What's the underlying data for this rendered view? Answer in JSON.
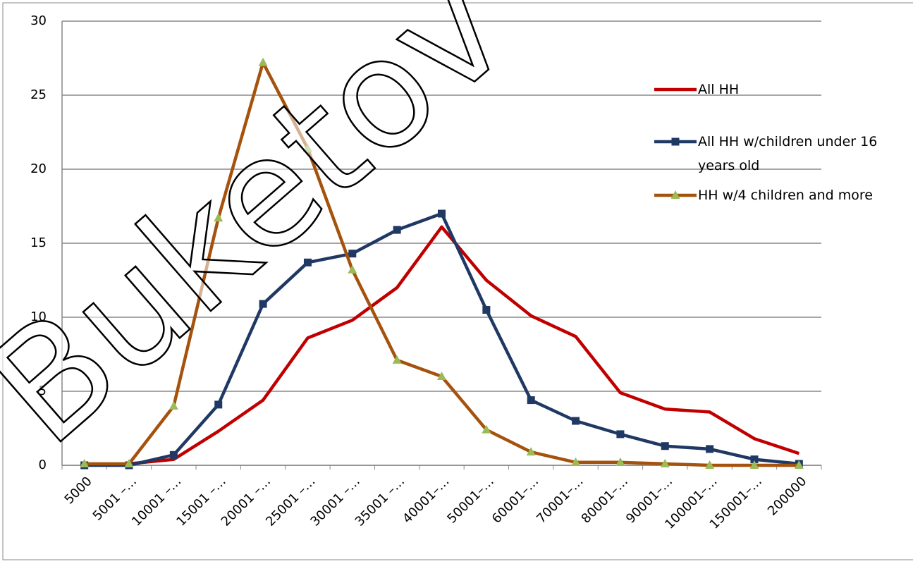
{
  "chart_data": {
    "type": "line",
    "categories": [
      "5000",
      "5001 –…",
      "10001 –…",
      "15001 –…",
      "20001 –…",
      "25001 –…",
      "30001 –…",
      "35001 –…",
      "40001–…",
      "50001–…",
      "60001–…",
      "70001–…",
      "80001–…",
      "90001–…",
      "100001–…",
      "150001–…",
      "200000"
    ],
    "series": [
      {
        "name": "All HH",
        "color": "#c00000",
        "marker": "none",
        "values": [
          0,
          0.1,
          0.4,
          2.3,
          4.4,
          8.6,
          9.8,
          12.0,
          16.1,
          12.5,
          10.1,
          8.7,
          4.9,
          3.8,
          3.6,
          1.8,
          0.8
        ]
      },
      {
        "name": "All HH w/children under 16 years old",
        "color": "#1f3864",
        "marker": "square",
        "values": [
          0,
          0,
          0.7,
          4.1,
          10.9,
          13.7,
          14.3,
          15.9,
          17.0,
          10.5,
          4.4,
          3.0,
          2.1,
          1.3,
          1.1,
          0.4,
          0.1
        ]
      },
      {
        "name": "HH w/4 children and more",
        "color": "#a5520c",
        "marker": "triangle",
        "values": [
          0.1,
          0.1,
          4.0,
          16.7,
          27.2,
          21.4,
          13.2,
          7.1,
          6.0,
          2.4,
          0.9,
          0.2,
          0.2,
          0.1,
          0,
          0,
          0
        ]
      }
    ],
    "ylim": [
      0,
      30
    ],
    "yticks": [
      0,
      5,
      10,
      15,
      20,
      25,
      30
    ],
    "grid": true,
    "legend": "right",
    "watermark": "Buketov Uni"
  }
}
